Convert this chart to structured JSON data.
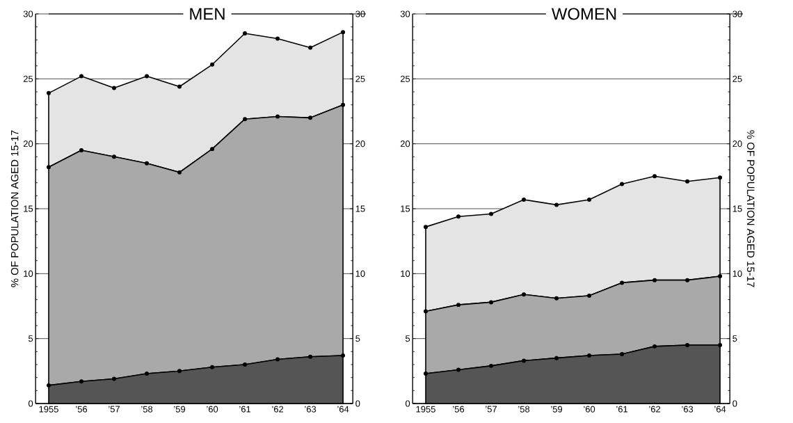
{
  "chart_data": [
    {
      "type": "area",
      "stacked": true,
      "title": "MEN",
      "ylabel": "% OF POPULATION AGED 15-17",
      "categories": [
        "1955",
        "’56",
        "’57",
        "’58",
        "’59",
        "’60",
        "’61",
        "’62",
        "’63",
        "’64"
      ],
      "series": [
        {
          "color": "#555555",
          "values": [
            1.4,
            1.7,
            1.9,
            2.3,
            2.5,
            2.8,
            3.0,
            3.4,
            3.6,
            3.7
          ]
        },
        {
          "color": "#a9a9a9",
          "values": [
            16.8,
            17.8,
            17.1,
            16.2,
            15.3,
            16.8,
            18.9,
            18.7,
            18.4,
            19.3
          ]
        },
        {
          "color": "#e4e4e4",
          "values": [
            5.7,
            5.7,
            5.3,
            6.7,
            6.6,
            6.5,
            6.6,
            6.0,
            5.4,
            5.6
          ]
        }
      ],
      "ylim": [
        0,
        30
      ],
      "yticks": [
        0,
        5,
        10,
        15,
        20,
        25,
        30
      ],
      "y2lim": [
        0,
        30
      ],
      "y2ticks": [
        0,
        5,
        10,
        15,
        20,
        25,
        30
      ],
      "grid": "y",
      "marker": "circle"
    },
    {
      "type": "area",
      "stacked": true,
      "title": "WOMEN",
      "y2label": "% OF POPULATION AGED 15-17",
      "categories": [
        "1955",
        "’56",
        "’57",
        "’58",
        "’59",
        "’60",
        "’61",
        "’62",
        "’63",
        "’64"
      ],
      "series": [
        {
          "color": "#555555",
          "values": [
            2.3,
            2.6,
            2.9,
            3.3,
            3.5,
            3.7,
            3.8,
            4.4,
            4.5,
            4.5
          ]
        },
        {
          "color": "#a9a9a9",
          "values": [
            4.8,
            5.0,
            4.9,
            5.1,
            4.6,
            4.6,
            5.5,
            5.1,
            5.0,
            5.3
          ]
        },
        {
          "color": "#e4e4e4",
          "values": [
            6.5,
            6.8,
            6.8,
            7.3,
            7.2,
            7.4,
            7.6,
            8.0,
            7.6,
            7.6
          ]
        }
      ],
      "ylim": [
        0,
        30
      ],
      "yticks": [
        0,
        5,
        10,
        15,
        20,
        25,
        30
      ],
      "y2lim": [
        0,
        30
      ],
      "y2ticks": [
        0,
        5,
        10,
        15,
        20,
        25,
        30
      ],
      "grid": "y",
      "marker": "circle"
    }
  ]
}
